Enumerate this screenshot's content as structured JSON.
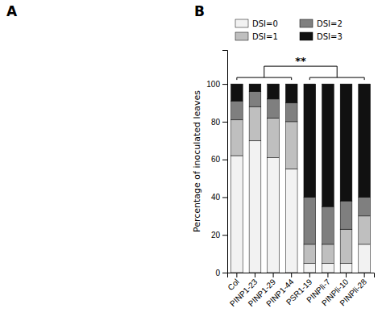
{
  "chart_data": {
    "type": "bar",
    "stacked": true,
    "categories": [
      "Col",
      "PINP1-23",
      "PINP1-29",
      "PINP1-44",
      "PSR1-19",
      "PINPli-7",
      "PINPli-10",
      "PINPli-28"
    ],
    "series": [
      {
        "name": "DSI=0",
        "color": "#f2f2f2",
        "values": [
          62,
          70,
          61,
          55,
          5,
          5,
          5,
          15
        ]
      },
      {
        "name": "DSI=1",
        "color": "#bfbfbf",
        "values": [
          19,
          18,
          21,
          25,
          10,
          10,
          18,
          15
        ]
      },
      {
        "name": "DSI=2",
        "color": "#7f7f7f",
        "values": [
          10,
          8,
          10,
          10,
          25,
          20,
          15,
          10
        ]
      },
      {
        "name": "DSI=3",
        "color": "#111111",
        "values": [
          9,
          4,
          8,
          10,
          60,
          65,
          62,
          60
        ]
      }
    ],
    "y_label": "Percentage of inoculated leaves",
    "ylim": [
      0,
      118
    ],
    "yticks": [
      0,
      20,
      40,
      60,
      80,
      100
    ],
    "grid": false,
    "legend": "top",
    "annotations": [
      "A",
      "B",
      "**"
    ]
  }
}
